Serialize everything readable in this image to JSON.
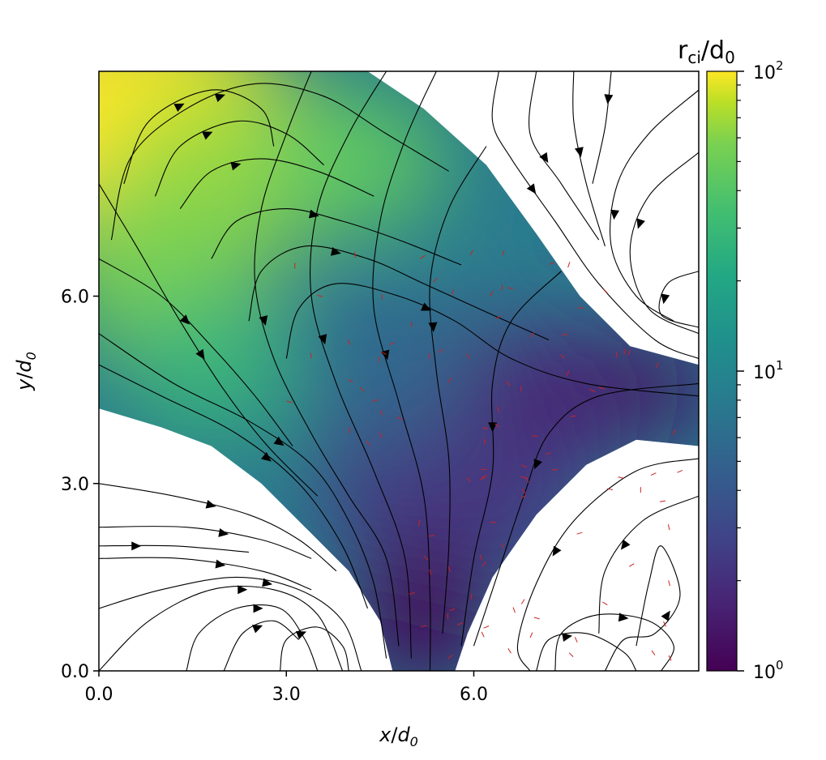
{
  "chart_data": {
    "type": "heatmap",
    "overlay": "streamlines",
    "xlabel": {
      "var": "x",
      "sub": "0",
      "base": "d"
    },
    "ylabel": {
      "var": "y",
      "sub": "0",
      "base": "d"
    },
    "xlim": [
      0,
      9.6
    ],
    "ylim": [
      0,
      9.6
    ],
    "xticks": [
      {
        "v": 0,
        "label": "0.0"
      },
      {
        "v": 3,
        "label": "3.0"
      },
      {
        "v": 6,
        "label": "6.0"
      }
    ],
    "yticks": [
      {
        "v": 0,
        "label": "0.0"
      },
      {
        "v": 3,
        "label": "3.0"
      },
      {
        "v": 6,
        "label": "6.0"
      }
    ],
    "colorbar": {
      "title_main": "r",
      "title_sub": "ci",
      "title_rest": "/d",
      "title_sub2": "0",
      "scale": "log",
      "range": [
        1,
        100
      ],
      "colormap": "viridis",
      "ticks": [
        {
          "exp": 0,
          "base": "10",
          "sup": "0"
        },
        {
          "exp": 1,
          "base": "10",
          "sup": "1"
        },
        {
          "exp": 2,
          "base": "10",
          "sup": "2"
        }
      ]
    },
    "field_description": "r_ci/d_0 is largest (~100) in upper-left corner, decreasing toward ~1 along the diagonal X-point band; white where undefined",
    "streamline_color": "#000000",
    "vector_color": "#cc2222",
    "grid": false
  }
}
